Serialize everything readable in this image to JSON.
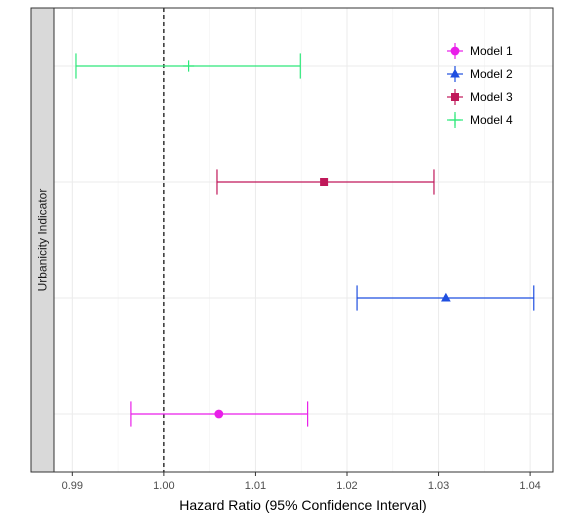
{
  "chart_data": {
    "type": "scatter",
    "title": "",
    "xlabel": "Hazard Ratio (95% Confidence Interval)",
    "strip_label": "Urbanicity Indicator",
    "xlim": [
      0.988,
      1.0425
    ],
    "x_ticks": [
      0.99,
      1.0,
      1.01,
      1.02,
      1.03,
      1.04
    ],
    "x_tick_labels": [
      "0.99",
      "1.00",
      "1.01",
      "1.02",
      "1.03",
      "1.04"
    ],
    "reference_line": 1.0,
    "grid": true,
    "legend_position": "top-right",
    "series": [
      {
        "name": "Model 1",
        "color": "#e91ee9",
        "marker": "circle",
        "estimate": 1.006,
        "lower": 0.9964,
        "upper": 1.0157
      },
      {
        "name": "Model 2",
        "color": "#1f4fe0",
        "marker": "triangle",
        "estimate": 1.0308,
        "lower": 1.0211,
        "upper": 1.0404
      },
      {
        "name": "Model 3",
        "color": "#c0185a",
        "marker": "square",
        "estimate": 1.0175,
        "lower": 1.0058,
        "upper": 1.0295
      },
      {
        "name": "Model 4",
        "color": "#2de87a",
        "marker": "plus",
        "estimate": 1.0027,
        "lower": 0.9904,
        "upper": 1.0149
      }
    ]
  }
}
